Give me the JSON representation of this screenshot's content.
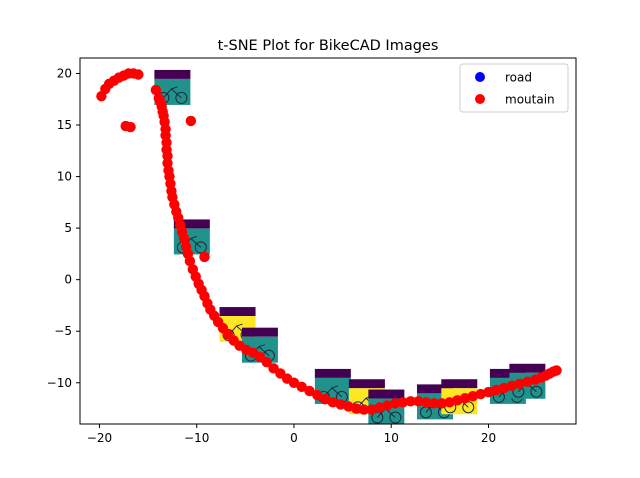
{
  "chart_data": {
    "type": "scatter",
    "title": "t-SNE Plot for BikeCAD Images",
    "xlabel": "",
    "ylabel": "",
    "xlim": [
      -22,
      29
    ],
    "ylim": [
      -14,
      21.5
    ],
    "x_ticks": [
      -20,
      -10,
      0,
      10,
      20
    ],
    "y_ticks": [
      -10,
      -5,
      0,
      5,
      10,
      15,
      20
    ],
    "x_tick_labels": [
      "−20",
      "−10",
      "0",
      "10",
      "20"
    ],
    "y_tick_labels": [
      "−10",
      "−5",
      "0",
      "5",
      "10",
      "15",
      "20"
    ],
    "grid": false,
    "legend_position": "top-right",
    "series": [
      {
        "name": "road",
        "color": "#0000ff",
        "points": []
      },
      {
        "name": "moutain",
        "color": "#ff0000",
        "points": [
          [
            -19.8,
            17.8
          ],
          [
            -19.4,
            18.5
          ],
          [
            -19.0,
            19.0
          ],
          [
            -18.5,
            19.3
          ],
          [
            -18.0,
            19.6
          ],
          [
            -17.5,
            19.8
          ],
          [
            -17.0,
            20.0
          ],
          [
            -16.5,
            20.0
          ],
          [
            -16.0,
            19.9
          ],
          [
            -17.3,
            14.9
          ],
          [
            -16.8,
            14.8
          ],
          [
            -10.6,
            15.4
          ],
          [
            -14.2,
            18.4
          ],
          [
            -13.9,
            17.6
          ],
          [
            -13.7,
            17.2
          ],
          [
            -13.6,
            16.8
          ],
          [
            -13.5,
            16.3
          ],
          [
            -13.4,
            15.9
          ],
          [
            -13.3,
            15.3
          ],
          [
            -13.2,
            14.6
          ],
          [
            -13.2,
            14.0
          ],
          [
            -13.1,
            13.3
          ],
          [
            -13.1,
            12.6
          ],
          [
            -13.0,
            12.0
          ],
          [
            -13.0,
            11.3
          ],
          [
            -12.9,
            10.6
          ],
          [
            -12.8,
            10.0
          ],
          [
            -12.7,
            9.3
          ],
          [
            -12.6,
            8.6
          ],
          [
            -12.5,
            8.0
          ],
          [
            -12.3,
            7.3
          ],
          [
            -12.1,
            6.6
          ],
          [
            -11.9,
            6.0
          ],
          [
            -11.7,
            5.3
          ],
          [
            -11.5,
            4.6
          ],
          [
            -11.3,
            4.0
          ],
          [
            -11.1,
            3.2
          ],
          [
            -10.9,
            2.5
          ],
          [
            -10.7,
            1.8
          ],
          [
            -10.4,
            1.0
          ],
          [
            -9.2,
            2.2
          ],
          [
            -10.1,
            0.3
          ],
          [
            -9.8,
            -0.4
          ],
          [
            -9.5,
            -1.0
          ],
          [
            -9.2,
            -1.6
          ],
          [
            -8.9,
            -2.3
          ],
          [
            -8.6,
            -2.9
          ],
          [
            -8.2,
            -3.5
          ],
          [
            -7.8,
            -4.1
          ],
          [
            -7.3,
            -4.7
          ],
          [
            -6.8,
            -5.3
          ],
          [
            -6.2,
            -5.9
          ],
          [
            -5.6,
            -6.4
          ],
          [
            -4.9,
            -6.8
          ],
          [
            -4.2,
            -7.1
          ],
          [
            -3.5,
            -7.5
          ],
          [
            -2.8,
            -8.0
          ],
          [
            -2.1,
            -8.6
          ],
          [
            -1.4,
            -9.1
          ],
          [
            -0.7,
            -9.6
          ],
          [
            0.0,
            -10.0
          ],
          [
            0.8,
            -10.4
          ],
          [
            1.6,
            -10.8
          ],
          [
            2.4,
            -11.2
          ],
          [
            3.2,
            -11.6
          ],
          [
            4.0,
            -11.9
          ],
          [
            4.8,
            -12.1
          ],
          [
            5.6,
            -12.3
          ],
          [
            6.4,
            -12.5
          ],
          [
            7.2,
            -12.6
          ],
          [
            8.0,
            -12.6
          ],
          [
            8.8,
            -12.4
          ],
          [
            9.6,
            -12.2
          ],
          [
            10.4,
            -12.0
          ],
          [
            11.2,
            -11.9
          ],
          [
            12.0,
            -11.8
          ],
          [
            12.8,
            -11.8
          ],
          [
            13.6,
            -11.9
          ],
          [
            14.4,
            -12.0
          ],
          [
            15.2,
            -12.0
          ],
          [
            16.0,
            -11.9
          ],
          [
            16.8,
            -11.7
          ],
          [
            17.6,
            -11.5
          ],
          [
            18.4,
            -11.3
          ],
          [
            19.2,
            -11.1
          ],
          [
            20.0,
            -10.9
          ],
          [
            20.8,
            -10.7
          ],
          [
            21.6,
            -10.5
          ],
          [
            22.4,
            -10.3
          ],
          [
            23.2,
            -10.1
          ],
          [
            24.0,
            -9.9
          ],
          [
            24.8,
            -9.7
          ],
          [
            25.4,
            -9.5
          ],
          [
            25.9,
            -9.3
          ],
          [
            26.3,
            -9.1
          ],
          [
            26.7,
            -8.9
          ],
          [
            27.0,
            -8.8
          ]
        ]
      }
    ],
    "image_thumbnails": [
      {
        "x": -12.5,
        "y": 18.5
      },
      {
        "x": -10.5,
        "y": 4.0
      },
      {
        "x": -5.8,
        "y": -4.5
      },
      {
        "x": -3.5,
        "y": -6.5
      },
      {
        "x": 4.0,
        "y": -10.5
      },
      {
        "x": 7.5,
        "y": -11.5
      },
      {
        "x": 9.5,
        "y": -12.5
      },
      {
        "x": 14.5,
        "y": -12.0
      },
      {
        "x": 17.0,
        "y": -11.5
      },
      {
        "x": 22.0,
        "y": -10.5
      },
      {
        "x": 24.0,
        "y": -10.0
      }
    ]
  }
}
